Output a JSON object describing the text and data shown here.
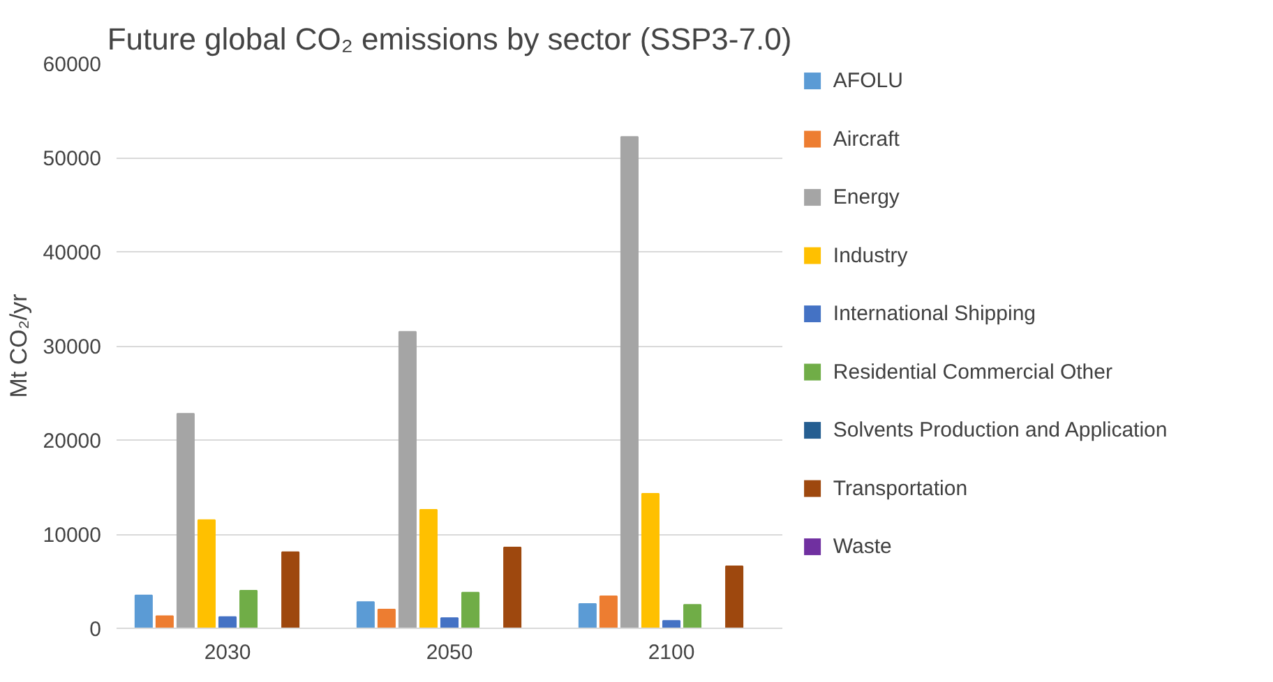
{
  "chart_data": {
    "type": "bar",
    "title": "Future global CO₂ emissions by sector (SSP3-7.0)",
    "ylabel": "Mt CO₂/yr",
    "categories": [
      "2030",
      "2050",
      "2100"
    ],
    "series": [
      {
        "name": "AFOLU",
        "color": "#5b9bd5",
        "values": [
          3500,
          2800,
          2600
        ]
      },
      {
        "name": "Aircraft",
        "color": "#ed7d31",
        "values": [
          1300,
          2000,
          3400
        ]
      },
      {
        "name": "Energy",
        "color": "#a5a5a5",
        "values": [
          22800,
          31500,
          52200
        ]
      },
      {
        "name": "Industry",
        "color": "#ffc000",
        "values": [
          11500,
          12600,
          14300
        ]
      },
      {
        "name": "International Shipping",
        "color": "#4472c4",
        "values": [
          1200,
          1100,
          800
        ]
      },
      {
        "name": "Residential Commercial Other",
        "color": "#70ad47",
        "values": [
          4000,
          3800,
          2500
        ]
      },
      {
        "name": "Solvents Production and Application",
        "color": "#255e91",
        "values": [
          0,
          0,
          0
        ]
      },
      {
        "name": "Transportation",
        "color": "#9e480e",
        "values": [
          8100,
          8600,
          6600
        ]
      },
      {
        "name": "Waste",
        "color": "#7030a0",
        "values": [
          0,
          0,
          0
        ]
      }
    ],
    "ylim": [
      0,
      60000
    ],
    "yticks": [
      0,
      10000,
      20000,
      30000,
      40000,
      50000,
      60000
    ],
    "grid": "y",
    "legend": "right"
  }
}
